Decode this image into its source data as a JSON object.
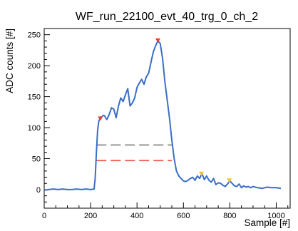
{
  "chart_data": {
    "type": "line",
    "title": "WF_run_22100_evt_40_trg_0_ch_2",
    "xlabel": "Sample [#]",
    "ylabel": "ADC counts [#]",
    "xlim": [
      0,
      1060
    ],
    "ylim": [
      -30,
      260
    ],
    "xticks": [
      0,
      200,
      400,
      600,
      800,
      1000
    ],
    "yticks": [
      0,
      50,
      100,
      150,
      200,
      250
    ],
    "grid": false,
    "series": [
      {
        "color": "#3a6fc4",
        "x": [
          0,
          20,
          40,
          60,
          80,
          100,
          120,
          140,
          160,
          180,
          200,
          215,
          220,
          225,
          230,
          235,
          240,
          245,
          250,
          255,
          260,
          270,
          280,
          290,
          300,
          310,
          320,
          330,
          340,
          350,
          360,
          370,
          380,
          390,
          400,
          410,
          420,
          430,
          440,
          450,
          460,
          470,
          480,
          490,
          500,
          510,
          520,
          530,
          540,
          550,
          560,
          565,
          570,
          580,
          590,
          600,
          610,
          620,
          630,
          640,
          650,
          660,
          670,
          680,
          690,
          700,
          710,
          720,
          730,
          740,
          750,
          760,
          770,
          780,
          790,
          800,
          810,
          820,
          830,
          840,
          850,
          860,
          870,
          880,
          890,
          900,
          920,
          940,
          960,
          980,
          1000,
          1020
        ],
        "values": [
          -1,
          0,
          1,
          0,
          1,
          0,
          0,
          1,
          0,
          1,
          0,
          1,
          20,
          60,
          95,
          110,
          114,
          116,
          118,
          120,
          119,
          113,
          121,
          132,
          130,
          116,
          135,
          148,
          142,
          153,
          163,
          135,
          140,
          148,
          165,
          172,
          178,
          170,
          182,
          188,
          205,
          222,
          232,
          240,
          236,
          212,
          175,
          145,
          115,
          80,
          50,
          40,
          30,
          22,
          18,
          14,
          13,
          15,
          18,
          20,
          15,
          22,
          18,
          26,
          16,
          22,
          15,
          12,
          18,
          8,
          11,
          10,
          7,
          5,
          9,
          14,
          10,
          6,
          5,
          9,
          3,
          6,
          4,
          5,
          3,
          5,
          3,
          2,
          4,
          3,
          3,
          2
        ]
      }
    ],
    "markers": [
      {
        "x": 242,
        "y": 114,
        "color": "#e8392b",
        "shape": "triangle-down"
      },
      {
        "x": 490,
        "y": 240,
        "color": "#e8392b",
        "shape": "triangle-down"
      },
      {
        "x": 678,
        "y": 25,
        "color": "#f2c230",
        "shape": "triangle-down"
      },
      {
        "x": 798,
        "y": 14,
        "color": "#f2c230",
        "shape": "triangle-down"
      }
    ],
    "hlines": [
      {
        "y": 72,
        "x0": 225,
        "x1": 550,
        "color": "#9a9a9a",
        "style": "dashed"
      },
      {
        "y": 47,
        "x0": 225,
        "x1": 550,
        "color": "#f0685a",
        "style": "dashed"
      }
    ]
  }
}
